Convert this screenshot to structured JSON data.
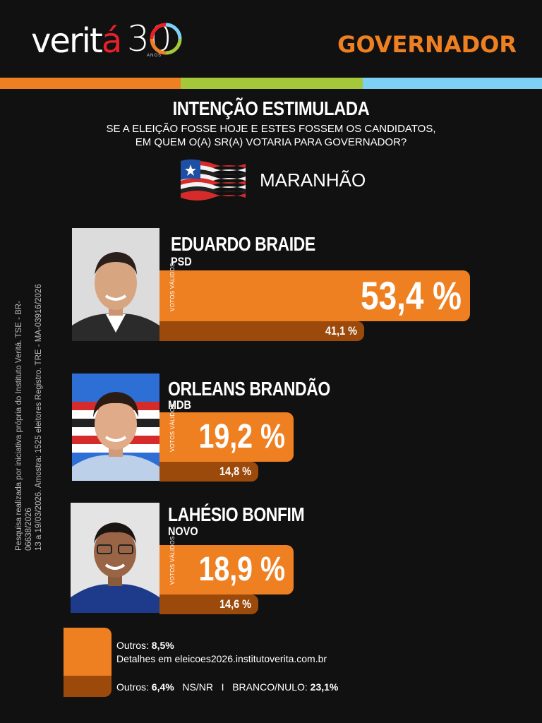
{
  "brand": {
    "logo_word": "verita",
    "logo_number": "30",
    "logo_sub": "ANOS"
  },
  "header": {
    "title": "GOVERNADOR"
  },
  "colors": {
    "background": "#111111",
    "accent_orange": "#ef8022",
    "dark_orange": "#9c4a0c",
    "stripe_green": "#a4c839",
    "stripe_blue": "#7ed1f4"
  },
  "survey": {
    "title": "INTENÇÃO ESTIMULADA",
    "question_line1": "SE A ELEIÇÃO FOSSE HOJE E ESTES FOSSEM OS CANDIDATOS,",
    "question_line2": "EM QUEM O(A) SR(A) VOTARIA PARA GOVERNADOR?",
    "state": "MARANHÃO",
    "side_note_line1": "Pesquisa realizada por iniciativa própria do Instituto Veritá. TSE - BR-06638/2026",
    "side_note_line2": "13 a 19/03/2026. Amostra: 1525 eleitores Registro. TRE - MA-03916/2026"
  },
  "chart_data": {
    "type": "bar",
    "orientation": "horizontal",
    "categories": [
      "EDUARDO BRAIDE",
      "ORLEANS BRANDÃO",
      "LAHÉSIO BONFIM"
    ],
    "parties": [
      "PSD",
      "MDB",
      "NOVO"
    ],
    "series": [
      {
        "name": "VOTOS VÁLIDOS",
        "values": [
          53.4,
          19.2,
          18.9
        ]
      },
      {
        "values": [
          41.1,
          14.8,
          14.6
        ]
      }
    ],
    "value_labels_main": [
      "53,4 %",
      "19,2 %",
      "18,9 %"
    ],
    "value_labels_sub": [
      "41,1 %",
      "14,8 %",
      "14,6 %"
    ],
    "bar_label": "VOTOS VÁLIDOS"
  },
  "footer": {
    "outros_valid_label": "Outros:",
    "outros_valid_value": "8,5%",
    "details_text": "Detalhes em eleicoes2026.institutoverita.com.br",
    "outros_total_label": "Outros:",
    "outros_total_value": "6,4%",
    "nsnr_label": "NS/NR",
    "separator": "I",
    "branco_label": "BRANCO/NULO:",
    "branco_value": "23,1%"
  }
}
